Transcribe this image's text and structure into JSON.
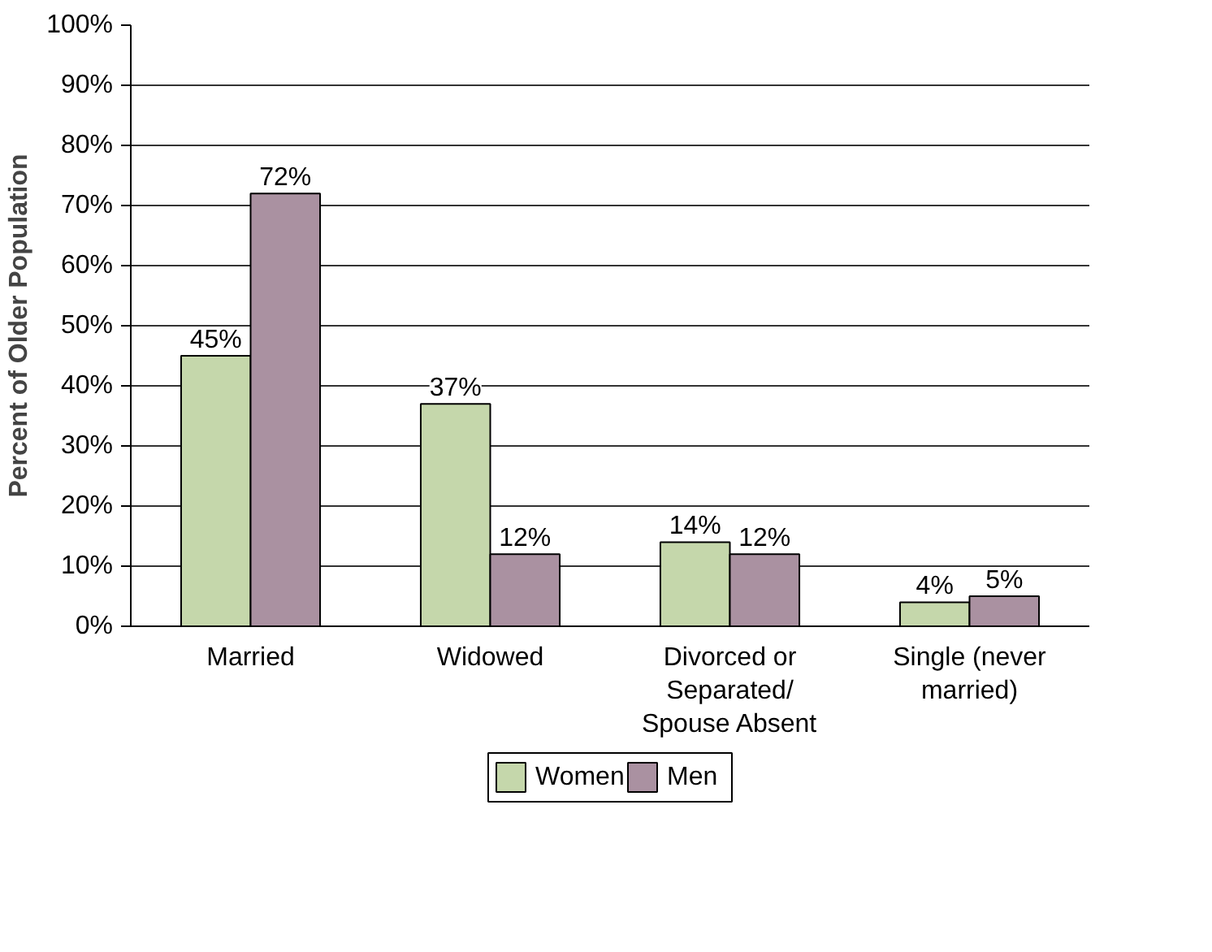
{
  "chart_data": {
    "type": "bar",
    "ylabel": "Percent of Older Population",
    "categories": [
      "Married",
      "Widowed",
      "Divorced or Separated/ Spouse Absent",
      "Single (never married)"
    ],
    "series": [
      {
        "name": "Women",
        "color": "#c5d7ab",
        "values": [
          45,
          37,
          14,
          4
        ],
        "value_labels": [
          "45%",
          "37%",
          "14%",
          "4%"
        ]
      },
      {
        "name": "Men",
        "color": "#aa91a1",
        "values": [
          72,
          12,
          12,
          5
        ],
        "value_labels": [
          "72%",
          "12%",
          "12%",
          "5%"
        ]
      }
    ],
    "ylim": [
      0,
      100
    ],
    "yticks": [
      {
        "value": 0,
        "label": "0%"
      },
      {
        "value": 10,
        "label": "10%"
      },
      {
        "value": 20,
        "label": "20%"
      },
      {
        "value": 30,
        "label": "30%"
      },
      {
        "value": 40,
        "label": "40%"
      },
      {
        "value": 50,
        "label": "50%"
      },
      {
        "value": 60,
        "label": "60%"
      },
      {
        "value": 70,
        "label": "70%"
      },
      {
        "value": 80,
        "label": "80%"
      },
      {
        "value": 90,
        "label": "90%"
      },
      {
        "value": 100,
        "label": "100%"
      }
    ],
    "grid": "y",
    "legend": "bottom"
  }
}
